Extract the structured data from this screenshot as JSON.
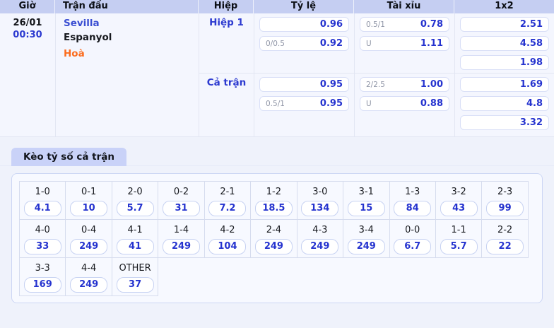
{
  "colors": {
    "header_bg": "#c5cef2",
    "tab_bg": "#c9d2f8",
    "accent_blue": "#2533cf",
    "link_blue": "#3a4ed2",
    "draw_orange": "#fb6c1e"
  },
  "match_table": {
    "headers": {
      "time": "Giờ",
      "match": "Trận đấu",
      "half": "Hiệp",
      "ratio": "Tỷ lệ",
      "over_under": "Tài xỉu",
      "x12": "1x2"
    },
    "date": "26/01",
    "kickoff": "00:30",
    "home_team": "Sevilla",
    "away_team": "Espanyol",
    "draw": "Hoà",
    "sections": [
      {
        "label": "Hiệp 1",
        "ratio": [
          {
            "hdp": "",
            "odds": "0.96"
          },
          {
            "hdp": "0/0.5",
            "odds": "0.92"
          }
        ],
        "over_under": [
          {
            "hdp": "0.5/1",
            "odds": "0.78"
          },
          {
            "hdp": "U",
            "odds": "1.11"
          }
        ],
        "x12": [
          "2.51",
          "4.58",
          "1.98"
        ]
      },
      {
        "label": "Cả trận",
        "ratio": [
          {
            "hdp": "",
            "odds": "0.95"
          },
          {
            "hdp": "0.5/1",
            "odds": "0.95"
          }
        ],
        "over_under": [
          {
            "hdp": "2/2.5",
            "odds": "1.00"
          },
          {
            "hdp": "U",
            "odds": "0.88"
          }
        ],
        "x12": [
          "1.69",
          "4.8",
          "3.32"
        ]
      }
    ]
  },
  "score_odds": {
    "tab_label": "Kèo tỷ số cả trận",
    "rows": [
      [
        {
          "score": "1-0",
          "odds": "4.1"
        },
        {
          "score": "0-1",
          "odds": "10"
        },
        {
          "score": "2-0",
          "odds": "5.7"
        },
        {
          "score": "0-2",
          "odds": "31"
        },
        {
          "score": "2-1",
          "odds": "7.2"
        },
        {
          "score": "1-2",
          "odds": "18.5"
        },
        {
          "score": "3-0",
          "odds": "134"
        },
        {
          "score": "3-1",
          "odds": "15"
        },
        {
          "score": "1-3",
          "odds": "84"
        },
        {
          "score": "3-2",
          "odds": "43"
        },
        {
          "score": "2-3",
          "odds": "99"
        }
      ],
      [
        {
          "score": "4-0",
          "odds": "33"
        },
        {
          "score": "0-4",
          "odds": "249"
        },
        {
          "score": "4-1",
          "odds": "41"
        },
        {
          "score": "1-4",
          "odds": "249"
        },
        {
          "score": "4-2",
          "odds": "104"
        },
        {
          "score": "2-4",
          "odds": "249"
        },
        {
          "score": "4-3",
          "odds": "249"
        },
        {
          "score": "3-4",
          "odds": "249"
        },
        {
          "score": "0-0",
          "odds": "6.7"
        },
        {
          "score": "1-1",
          "odds": "5.7"
        },
        {
          "score": "2-2",
          "odds": "22"
        }
      ],
      [
        {
          "score": "3-3",
          "odds": "169"
        },
        {
          "score": "4-4",
          "odds": "249"
        },
        {
          "score": "OTHER",
          "odds": "37"
        }
      ]
    ]
  }
}
